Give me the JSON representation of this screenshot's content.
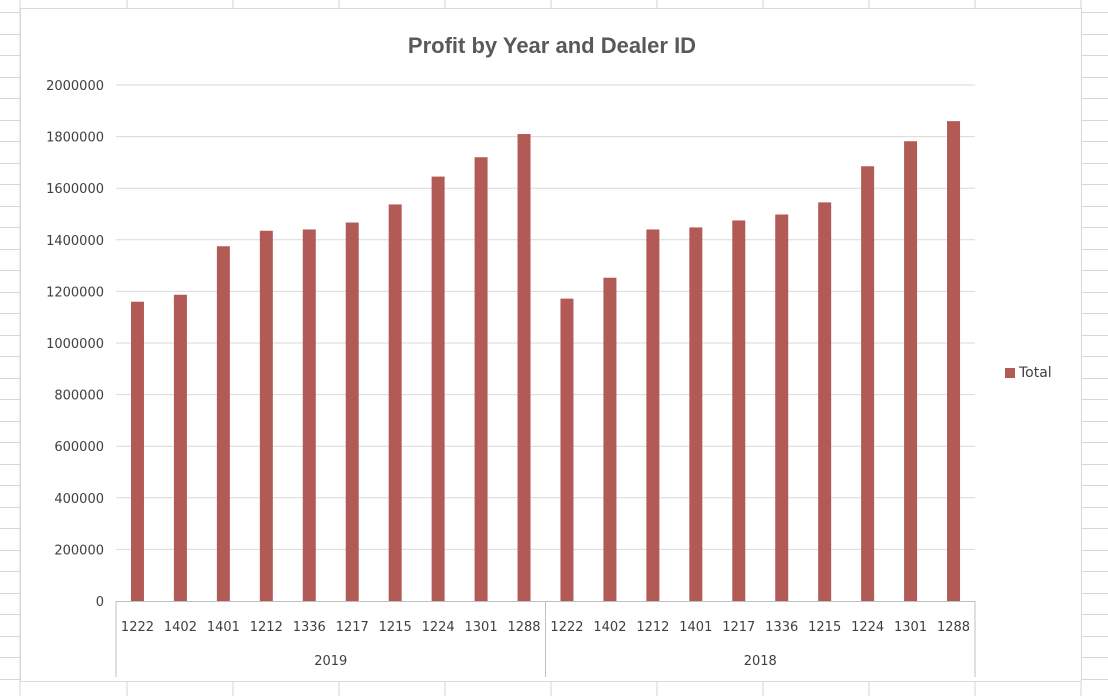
{
  "colors": {
    "bar": "#b25a55",
    "gridline": "#d9d9d9",
    "axis": "#bfbfbf",
    "text": "#404040",
    "title": "#595959"
  },
  "chart_data": {
    "type": "bar",
    "title": "Profit by Year and Dealer ID",
    "xlabel": "",
    "ylabel": "",
    "ylim": [
      0,
      2000000
    ],
    "yticks": [
      0,
      200000,
      400000,
      600000,
      800000,
      1000000,
      1200000,
      1400000,
      1600000,
      1800000,
      2000000
    ],
    "grid": true,
    "legend_position": "right",
    "groups": [
      {
        "label": "2019",
        "categories": [
          "1222",
          "1402",
          "1401",
          "1212",
          "1336",
          "1217",
          "1215",
          "1224",
          "1301",
          "1288"
        ],
        "values": [
          1160000,
          1187000,
          1375000,
          1435000,
          1440000,
          1467000,
          1537000,
          1645000,
          1720000,
          1810000
        ]
      },
      {
        "label": "2018",
        "categories": [
          "1222",
          "1402",
          "1212",
          "1401",
          "1217",
          "1336",
          "1215",
          "1224",
          "1301",
          "1288"
        ],
        "values": [
          1172000,
          1253000,
          1440000,
          1448000,
          1475000,
          1498000,
          1545000,
          1685000,
          1782000,
          1860000
        ]
      }
    ],
    "series": [
      {
        "name": "Total"
      }
    ]
  }
}
